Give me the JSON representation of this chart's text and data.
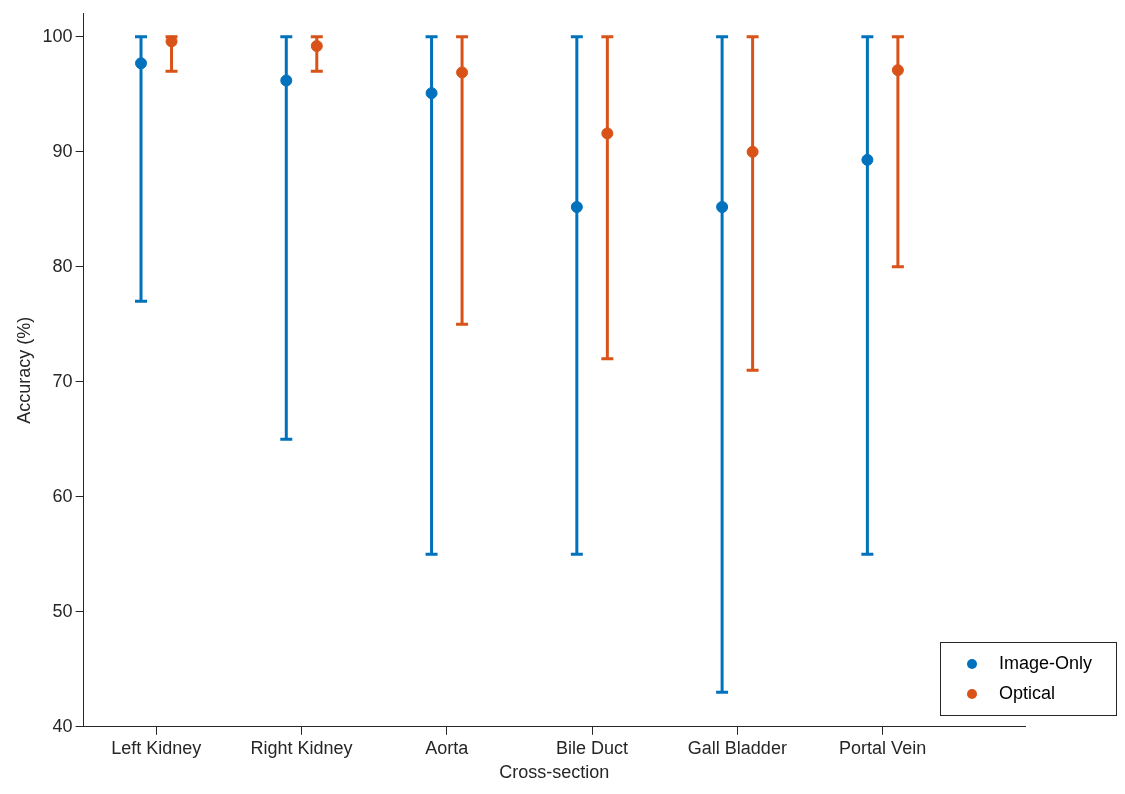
{
  "chart_data": {
    "type": "scatter",
    "xlabel": "Cross-section",
    "ylabel": "Accuracy (%)",
    "categories": [
      "Left Kidney",
      "Right Kidney",
      "Aorta",
      "Bile Duct",
      "Gall Bladder",
      "Portal Vein"
    ],
    "ylim": [
      40,
      102
    ],
    "yticks": [
      40,
      50,
      60,
      70,
      80,
      90,
      100
    ],
    "grid": false,
    "legend": "bottom right",
    "marker": "circle",
    "series": [
      {
        "name": "Image-Only",
        "color": "#0072bd",
        "values": [
          97.7,
          96.2,
          95.1,
          85.2,
          85.2,
          89.3
        ],
        "errors": [
          [
            77,
            100
          ],
          [
            65,
            100
          ],
          [
            55,
            100
          ],
          [
            55,
            100
          ],
          [
            43,
            100
          ],
          [
            55,
            100
          ]
        ]
      },
      {
        "name": "Optical",
        "color": "#d95319",
        "values": [
          99.6,
          99.2,
          96.9,
          91.6,
          90.0,
          97.1
        ],
        "errors": [
          [
            97,
            100
          ],
          [
            97,
            100
          ],
          [
            75,
            100
          ],
          [
            72,
            100
          ],
          [
            71,
            100
          ],
          [
            80,
            100
          ]
        ]
      }
    ]
  }
}
